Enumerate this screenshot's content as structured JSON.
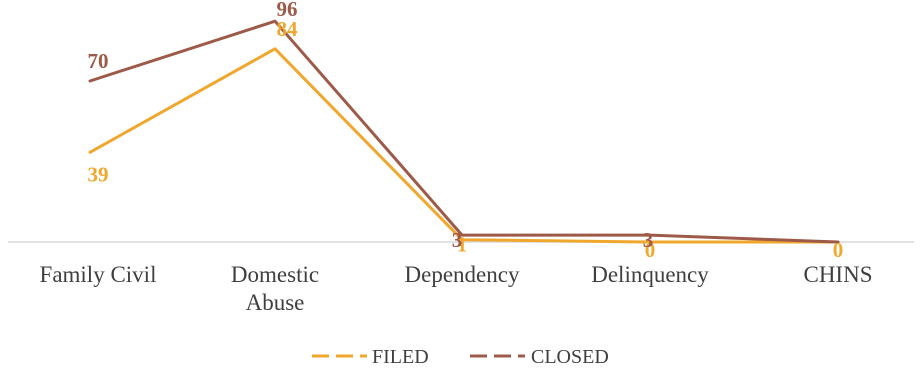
{
  "chart_data": {
    "type": "line",
    "categories": [
      "Family Civil",
      "Domestic Abuse",
      "Dependency",
      "Delinquency",
      "CHINS"
    ],
    "category_lines": [
      [
        "Family Civil"
      ],
      [
        "Domestic",
        "Abuse"
      ],
      [
        "Dependency"
      ],
      [
        "Delinquency"
      ],
      [
        "CHINS"
      ]
    ],
    "ylim": [
      0,
      100
    ],
    "grid": false,
    "legend_position": "bottom",
    "series": [
      {
        "name": "FILED",
        "values": [
          39,
          84,
          1,
          0,
          0
        ],
        "labels": [
          "39",
          "84",
          "1",
          "0",
          "0"
        ],
        "color": "#F0A72E"
      },
      {
        "name": "CLOSED",
        "values": [
          70,
          96,
          3,
          3,
          0
        ],
        "labels": [
          "70",
          "96",
          "3",
          "3",
          "0"
        ],
        "color": "#9E5A48"
      }
    ]
  }
}
